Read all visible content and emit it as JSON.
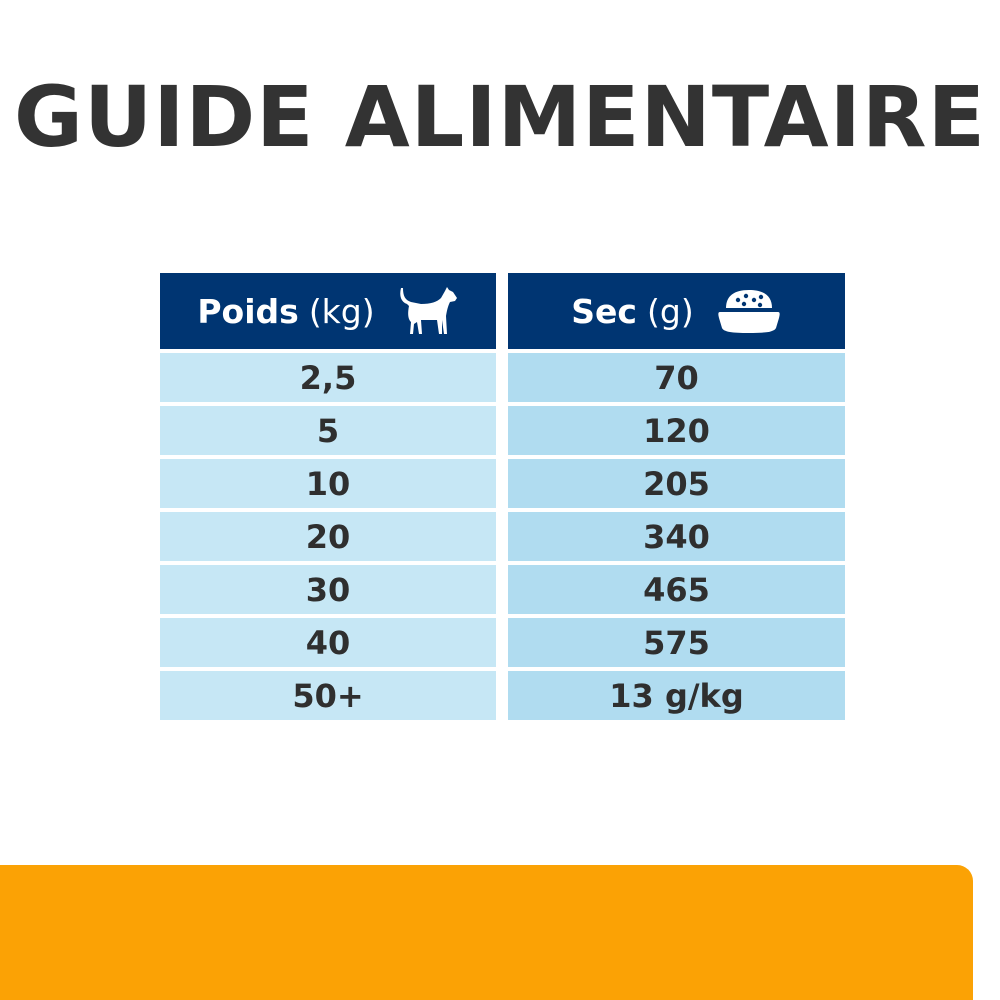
{
  "title": "GUIDE ALIMENTAIRE",
  "table": {
    "headers": [
      {
        "label": "Poids",
        "unit": "(kg)",
        "icon": "dog-icon"
      },
      {
        "label": "Sec",
        "unit": "(g)",
        "icon": "food-bowl-icon"
      }
    ],
    "rows": [
      [
        "2,5",
        "70"
      ],
      [
        "5",
        "120"
      ],
      [
        "10",
        "205"
      ],
      [
        "20",
        "340"
      ],
      [
        "30",
        "465"
      ],
      [
        "40",
        "575"
      ],
      [
        "50+",
        "13 g/kg"
      ]
    ]
  },
  "colors": {
    "header": "#003572",
    "band": "#fba205",
    "row_left": "#c6e7f5",
    "row_right": "#b0dcf0"
  }
}
